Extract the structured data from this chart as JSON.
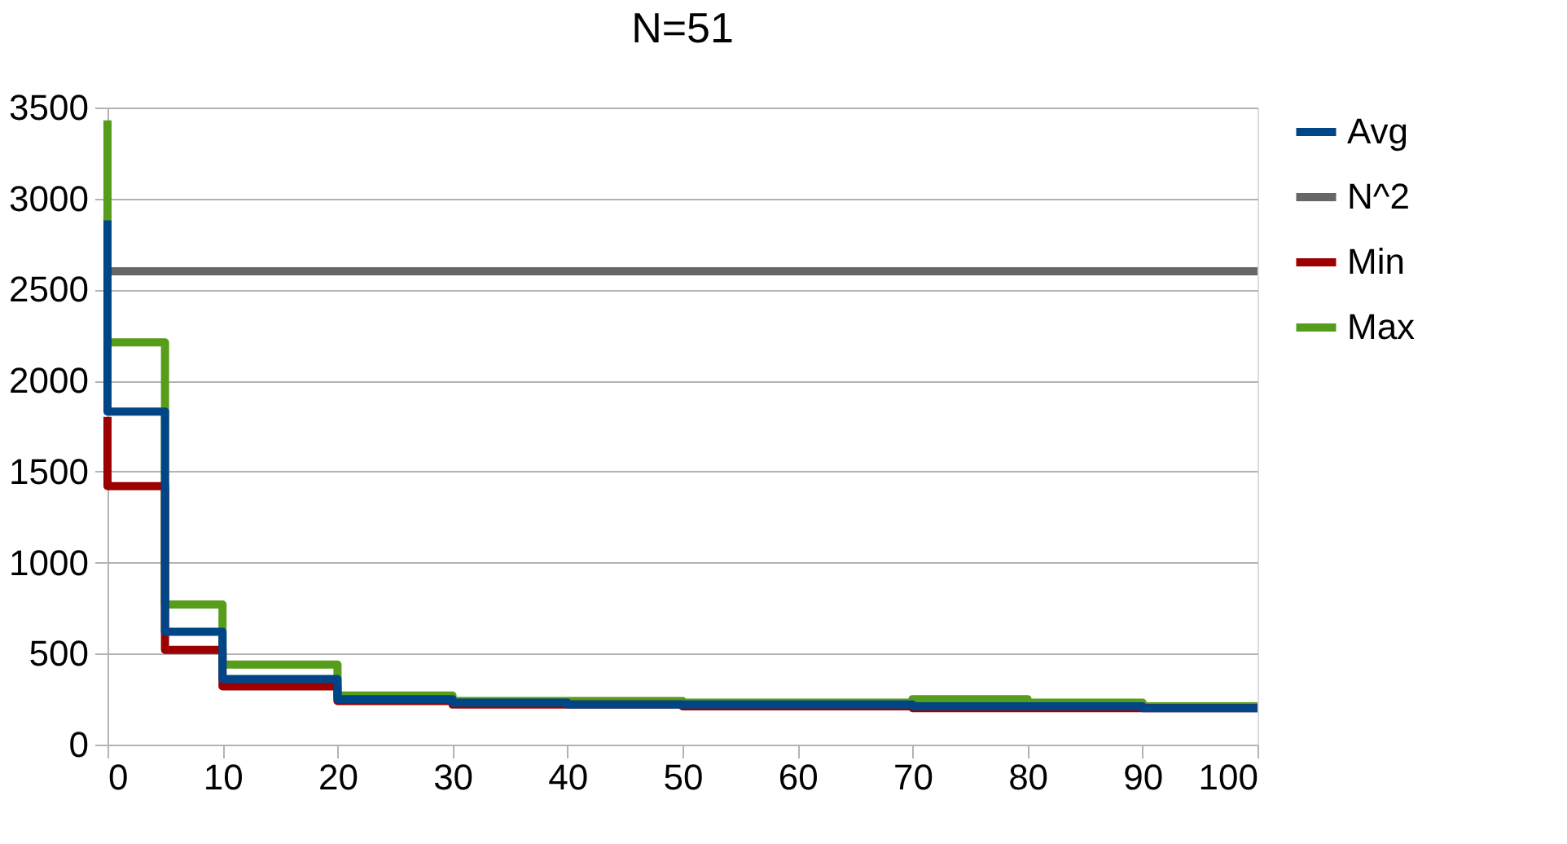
{
  "chart_data": {
    "type": "step",
    "title": "N=51",
    "x": [
      0,
      5,
      10,
      20,
      30,
      40,
      50,
      60,
      70,
      80,
      90,
      100
    ],
    "series": [
      {
        "name": "Avg",
        "color": "#004586",
        "values": [
          2880,
          1830,
          620,
          360,
          250,
          230,
          220,
          220,
          220,
          210,
          210,
          200
        ]
      },
      {
        "name": "N^2",
        "color": "#666666",
        "type": "line",
        "values": [
          2600,
          2600,
          2600,
          2600,
          2600,
          2600,
          2600,
          2600,
          2600,
          2600,
          2600,
          2600
        ]
      },
      {
        "name": "Min",
        "color": "#9c0000",
        "values": [
          1800,
          1420,
          520,
          320,
          240,
          220,
          220,
          210,
          210,
          200,
          200,
          200
        ]
      },
      {
        "name": "Max",
        "color": "#579d1c",
        "values": [
          3430,
          2210,
          770,
          440,
          270,
          240,
          240,
          230,
          230,
          250,
          230,
          210
        ]
      }
    ],
    "xlim": [
      0,
      100
    ],
    "xticks": [
      0,
      10,
      20,
      30,
      40,
      50,
      60,
      70,
      80,
      90,
      100
    ],
    "ylim": [
      0,
      3500
    ],
    "yticks": [
      0,
      500,
      1000,
      1500,
      2000,
      2500,
      3000,
      3500
    ],
    "grid": "y",
    "legend": "right",
    "marker": "none",
    "line_style": "solid"
  }
}
